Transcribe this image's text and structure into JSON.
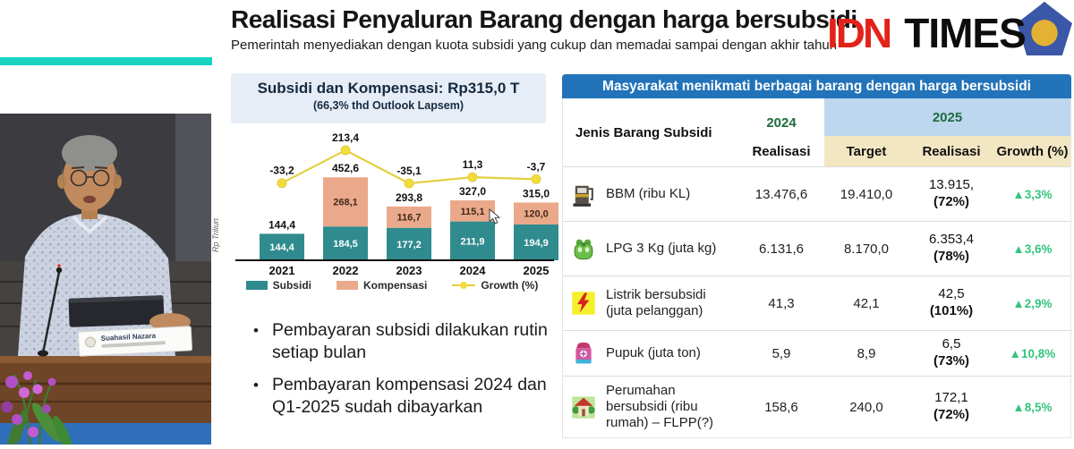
{
  "watermark": {
    "idn": "IDN",
    "times": "TIMES"
  },
  "slide": {
    "title": "Realisasi Penyaluran Barang dengan harga bersubsidi",
    "subtitle": "Pemerintah menyediakan dengan kuota subsidi yang cukup dan memadai sampai dengan akhir tahun"
  },
  "chart_box": {
    "title": "Subsidi dan Kompensasi: Rp315,0 T",
    "subtitle": "(66,3% thd Outlook Lapsem)"
  },
  "chart_data": {
    "type": "bar",
    "title": "Subsidi dan Kompensasi: Rp315,0 T",
    "categories": [
      "2021",
      "2022",
      "2023",
      "2024",
      "2025"
    ],
    "series": [
      {
        "name": "Subsidi",
        "type": "bar",
        "color": "#2f8b8e",
        "values": [
          144.4,
          184.5,
          177.2,
          211.9,
          194.9
        ],
        "labels": [
          "144,4",
          "184,5",
          "177,2",
          "211,9",
          "194,9"
        ]
      },
      {
        "name": "Kompensasi",
        "type": "bar",
        "color": "#eba98b",
        "values": [
          0,
          268.1,
          116.7,
          115.1,
          120.0
        ],
        "labels": [
          "",
          "268,1",
          "116,7",
          "115,1",
          "120,0"
        ]
      },
      {
        "name": "Growth (%)",
        "type": "line",
        "color": "#e4cf3e",
        "values": [
          -33.2,
          213.4,
          -35.1,
          11.3,
          -3.7
        ],
        "labels": [
          "-33,2",
          "213,4",
          "-35,1",
          "11,3",
          "-3,7"
        ]
      }
    ],
    "totals": [
      "144,4",
      "452,6",
      "293,8",
      "327,0",
      "315,0"
    ],
    "ylabel": "Rp Triliun",
    "legend_position": "bottom",
    "grid": false,
    "stacked": true
  },
  "bullets": [
    "Pembayaran subsidi dilakukan rutin setiap bulan",
    "Pembayaran kompensasi 2024 dan Q1-2025 sudah dibayarkan"
  ],
  "table": {
    "banner": "Masyarakat menikmati berbagai barang dengan harga bersubsidi",
    "headers": {
      "jenis": "Jenis Barang Subsidi",
      "y2024": "2024",
      "y2024_sub": "Realisasi",
      "y2025": "2025",
      "target": "Target",
      "realisasi": "Realisasi",
      "growth": "Growth (%)"
    },
    "rows": [
      {
        "icon": "fuel-pump",
        "name": "BBM (ribu KL)",
        "r2024": "13.476,6",
        "target": "19.410,0",
        "real1": "13.915,",
        "real2": "(72%)",
        "growth": "▲3,3%"
      },
      {
        "icon": "lpg-cylinder",
        "name": "LPG 3 Kg (juta kg)",
        "r2024": "6.131,6",
        "target": "8.170,0",
        "real1": "6.353,4",
        "real2": "(78%)",
        "growth": "▲3,6%"
      },
      {
        "icon": "electricity",
        "name": "Listrik bersubsidi (juta pelanggan)",
        "r2024": "41,3",
        "target": "42,1",
        "real1": "42,5",
        "real2": "(101%)",
        "growth": "▲2,9%"
      },
      {
        "icon": "fertilizer-sack",
        "name": "Pupuk (juta ton)",
        "r2024": "5,9",
        "target": "8,9",
        "real1": "6,5",
        "real2": "(73%)",
        "growth": "▲10,8%"
      },
      {
        "icon": "house",
        "name": "Perumahan bersubsidi (ribu rumah) – FLPP(?)",
        "r2024": "158,6",
        "target": "240,0",
        "real1": "172,1",
        "real2": "(72%)",
        "growth": "▲8,5%"
      }
    ]
  },
  "video": {
    "nameplate": "Suahasil Nazara"
  },
  "colors": {
    "accent_teal_stripe": "#17d3c2",
    "table_banner_blue": "#2273b9",
    "header_2025_bg": "#bdd7ee",
    "header_sub_bg": "#f3e7c3",
    "year_green": "#1e6b3c",
    "growth_green": "#35c47d",
    "idn_red": "#e2231a"
  }
}
